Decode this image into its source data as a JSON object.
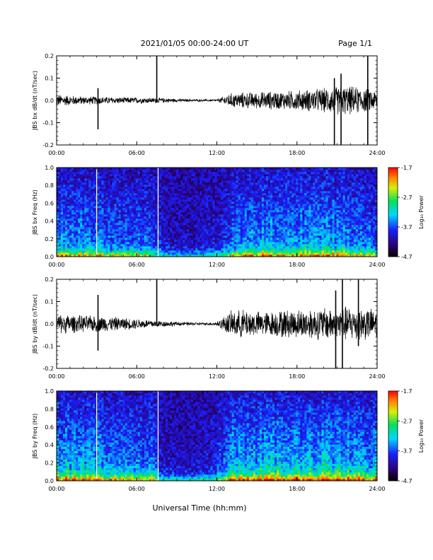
{
  "header": {
    "title": "2021/01/05  00:00-24:00 UT",
    "page": "Page 1/1"
  },
  "footer": {
    "xlabel": "Universal Time (hh:mm)"
  },
  "chart_data": [
    {
      "type": "line",
      "ylabel": "JBS bx dB/dt (nT/sec)",
      "ylim": [
        -0.2,
        0.2
      ],
      "yticks": [
        "0.2",
        "0.1",
        "0.0",
        "-0.1",
        "-0.2"
      ],
      "xlim": [
        0,
        24
      ],
      "xticks": [
        "00:00",
        "06:00",
        "12:00",
        "18:00",
        "24:00"
      ],
      "envelope": {
        "hours": [
          0,
          1,
          2,
          3,
          4,
          5,
          6,
          7,
          8,
          9,
          10,
          11,
          12,
          13,
          14,
          15,
          16,
          17,
          18,
          19,
          20,
          21,
          22,
          23,
          24
        ],
        "amplitude": [
          0.03,
          0.025,
          0.02,
          0.02,
          0.017,
          0.015,
          0.015,
          0.013,
          0.012,
          0.008,
          0.006,
          0.005,
          0.005,
          0.035,
          0.04,
          0.04,
          0.045,
          0.045,
          0.05,
          0.055,
          0.06,
          0.07,
          0.07,
          0.06,
          0.05
        ]
      },
      "spikes": [
        {
          "t": 3.1,
          "min": -0.13,
          "max": 0.055
        },
        {
          "t": 7.5,
          "min": -0.01,
          "max": 0.22
        },
        {
          "t": 20.8,
          "min": -0.2,
          "max": 0.1
        },
        {
          "t": 21.3,
          "min": -0.2,
          "max": 0.12
        },
        {
          "t": 23.3,
          "min": -0.2,
          "max": 0.22
        }
      ]
    },
    {
      "type": "heatmap",
      "ylabel": "JBS bx Freq (Hz)",
      "ylim": [
        0.0,
        1.0
      ],
      "yticks": [
        "1.0",
        "0.8",
        "0.6",
        "0.4",
        "0.2",
        "0.0"
      ],
      "xlim": [
        0,
        24
      ],
      "xticks": [
        "00:00",
        "06:00",
        "12:00",
        "18:00",
        "24:00"
      ],
      "colorbar": {
        "label": "Log₁₀ Power",
        "range": [
          -4.7,
          -1.7
        ],
        "ticks": [
          "-1.7",
          "-2.7",
          "-3.7",
          "-4.7"
        ]
      },
      "activity": {
        "hours": [
          0,
          1,
          2,
          3,
          4,
          5,
          6,
          7,
          8,
          9,
          10,
          11,
          12,
          13,
          14,
          15,
          16,
          17,
          18,
          19,
          20,
          21,
          22,
          23,
          24
        ],
        "level": [
          0.45,
          0.42,
          0.4,
          0.38,
          0.35,
          0.33,
          0.32,
          0.3,
          0.1,
          0.05,
          0.05,
          0.08,
          0.12,
          0.3,
          0.45,
          0.5,
          0.5,
          0.45,
          0.45,
          0.48,
          0.5,
          0.45,
          0.42,
          0.35,
          0.35
        ]
      },
      "gaps": [
        3.0,
        7.6
      ]
    },
    {
      "type": "line",
      "ylabel": "JBS by dB/dt (nT/sec)",
      "ylim": [
        -0.2,
        0.2
      ],
      "yticks": [
        "0.2",
        "0.1",
        "0.0",
        "-0.1",
        "-0.2"
      ],
      "xlim": [
        0,
        24
      ],
      "xticks": [
        "00:00",
        "06:00",
        "12:00",
        "18:00",
        "24:00"
      ],
      "envelope": {
        "hours": [
          0,
          1,
          2,
          3,
          4,
          5,
          6,
          7,
          8,
          9,
          10,
          11,
          12,
          13,
          14,
          15,
          16,
          17,
          18,
          19,
          20,
          21,
          22,
          23,
          24
        ],
        "amplitude": [
          0.05,
          0.045,
          0.04,
          0.04,
          0.035,
          0.03,
          0.025,
          0.02,
          0.015,
          0.01,
          0.008,
          0.006,
          0.01,
          0.06,
          0.07,
          0.06,
          0.06,
          0.07,
          0.07,
          0.075,
          0.08,
          0.085,
          0.085,
          0.08,
          0.07
        ]
      },
      "spikes": [
        {
          "t": 3.1,
          "min": -0.12,
          "max": 0.13
        },
        {
          "t": 7.5,
          "min": -0.01,
          "max": 0.22
        },
        {
          "t": 20.9,
          "min": -0.2,
          "max": 0.15
        },
        {
          "t": 21.4,
          "min": -0.2,
          "max": 0.2
        },
        {
          "t": 22.6,
          "min": -0.1,
          "max": 0.22
        }
      ]
    },
    {
      "type": "heatmap",
      "ylabel": "JBS by Freq (Hz)",
      "ylim": [
        0.0,
        1.0
      ],
      "yticks": [
        "1.0",
        "0.8",
        "0.6",
        "0.4",
        "0.2",
        "0.0"
      ],
      "xlim": [
        0,
        24
      ],
      "xticks": [
        "00:00",
        "06:00",
        "12:00",
        "18:00",
        "24:00"
      ],
      "colorbar": {
        "label": "Log₁₀ Power",
        "range": [
          -4.7,
          -1.7
        ],
        "ticks": [
          "-1.7",
          "-2.7",
          "-3.7",
          "-4.7"
        ]
      },
      "activity": {
        "hours": [
          0,
          1,
          2,
          3,
          4,
          5,
          6,
          7,
          8,
          9,
          10,
          11,
          12,
          13,
          14,
          15,
          16,
          17,
          18,
          19,
          20,
          21,
          22,
          23,
          24
        ],
        "level": [
          0.55,
          0.52,
          0.5,
          0.48,
          0.45,
          0.42,
          0.4,
          0.38,
          0.12,
          0.06,
          0.06,
          0.1,
          0.2,
          0.45,
          0.55,
          0.58,
          0.55,
          0.55,
          0.55,
          0.58,
          0.6,
          0.55,
          0.52,
          0.5,
          0.48
        ]
      },
      "gaps": [
        3.0,
        7.6
      ]
    }
  ]
}
